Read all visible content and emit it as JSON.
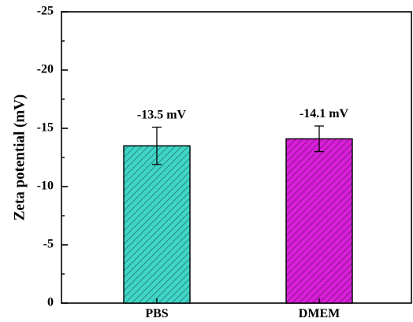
{
  "chart_data": {
    "type": "bar",
    "title": "",
    "xlabel": "",
    "ylabel": "Zeta potential (mV)",
    "categories": [
      "PBS",
      "DMEM"
    ],
    "values": [
      -13.5,
      -14.1
    ],
    "errors": [
      1.6,
      1.1
    ],
    "data_labels": [
      "-13.5 mV",
      "-14.1 mV"
    ],
    "ylim": [
      0,
      -25
    ],
    "yticks": [
      0,
      -5,
      -10,
      -15,
      -20,
      -25
    ],
    "ytick_labels": [
      "0",
      "-5",
      "-10",
      "-15",
      "-20",
      "-25"
    ],
    "y_axis_inverted": true,
    "grid": false,
    "bar_colors": [
      "#3fd6c8",
      "#d81fd8"
    ],
    "hatch": "diagonal"
  }
}
